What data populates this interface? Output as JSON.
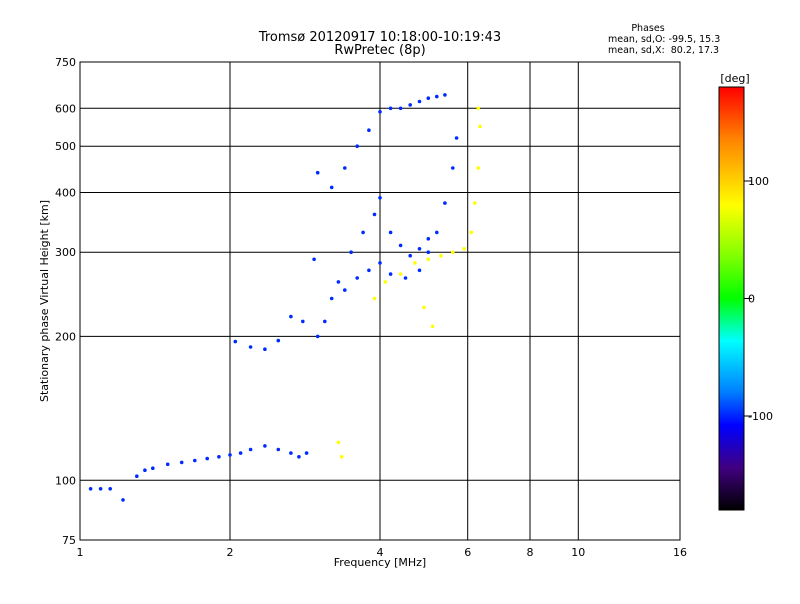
{
  "chart_data": {
    "type": "scatter",
    "title": "Tromsø 20120917 10:18:00-10:19:43",
    "subtitle": "RwPretec (8p)",
    "xlabel": "Frequency [MHz]",
    "ylabel": "Stationary phase Virtual Height [km]",
    "x_scale": "log",
    "y_scale": "log",
    "xlim": [
      1,
      16
    ],
    "ylim": [
      75,
      750
    ],
    "x_ticks": [
      1,
      2,
      4,
      6,
      8,
      10,
      16
    ],
    "y_ticks": [
      75,
      100,
      200,
      300,
      400,
      500,
      600,
      750
    ],
    "grid": true,
    "phase_box": {
      "title": "Phases",
      "line_o": "mean, sd,O: -99.5, 15.3",
      "line_x": "mean, sd,X:  80.2, 17.3"
    },
    "colorbar": {
      "label": "[deg]",
      "ticks": [
        100,
        0,
        -100
      ],
      "range": [
        -180,
        180
      ],
      "colors_top_to_bottom": [
        "#ff0000",
        "#ff8000",
        "#ffff00",
        "#80ff00",
        "#00ff00",
        "#00ffff",
        "#0080ff",
        "#0000ff",
        "#400080",
        "#000000"
      ]
    },
    "series": [
      {
        "group": "O-mode",
        "phase_deg": -100,
        "points": [
          [
            1.05,
            96
          ],
          [
            1.1,
            96
          ],
          [
            1.15,
            96
          ],
          [
            1.22,
            91
          ],
          [
            1.3,
            102
          ],
          [
            1.35,
            105
          ],
          [
            1.4,
            106
          ],
          [
            1.5,
            108
          ],
          [
            1.6,
            109
          ],
          [
            1.7,
            110
          ],
          [
            1.8,
            111
          ],
          [
            1.9,
            112
          ],
          [
            2.0,
            113
          ],
          [
            2.1,
            114
          ],
          [
            2.2,
            116
          ],
          [
            2.35,
            118
          ],
          [
            2.5,
            116
          ],
          [
            2.65,
            114
          ],
          [
            2.75,
            112
          ],
          [
            2.85,
            114
          ],
          [
            2.05,
            195
          ],
          [
            2.2,
            190
          ],
          [
            2.35,
            188
          ],
          [
            2.5,
            196
          ],
          [
            2.65,
            220
          ],
          [
            2.8,
            215
          ],
          [
            2.95,
            290
          ],
          [
            3.0,
            200
          ],
          [
            3.1,
            215
          ],
          [
            3.2,
            240
          ],
          [
            3.4,
            250
          ],
          [
            3.6,
            265
          ],
          [
            3.8,
            275
          ],
          [
            4.0,
            285
          ],
          [
            4.2,
            270
          ],
          [
            4.5,
            265
          ],
          [
            4.8,
            275
          ],
          [
            5.0,
            300
          ],
          [
            5.2,
            330
          ],
          [
            5.4,
            380
          ],
          [
            5.6,
            450
          ],
          [
            5.7,
            520
          ],
          [
            3.3,
            260
          ],
          [
            3.5,
            300
          ],
          [
            3.7,
            330
          ],
          [
            3.9,
            360
          ],
          [
            4.0,
            390
          ],
          [
            4.2,
            330
          ],
          [
            4.4,
            310
          ],
          [
            4.6,
            295
          ],
          [
            4.8,
            305
          ],
          [
            5.0,
            320
          ],
          [
            3.0,
            440
          ],
          [
            3.2,
            410
          ],
          [
            3.4,
            450
          ],
          [
            3.6,
            500
          ],
          [
            3.8,
            540
          ],
          [
            4.0,
            590
          ],
          [
            4.2,
            600
          ],
          [
            4.4,
            600
          ],
          [
            4.6,
            610
          ],
          [
            4.8,
            620
          ],
          [
            5.0,
            630
          ],
          [
            5.2,
            635
          ],
          [
            5.4,
            640
          ]
        ]
      },
      {
        "group": "X-mode",
        "phase_deg": 80,
        "points": [
          [
            3.9,
            240
          ],
          [
            4.1,
            260
          ],
          [
            4.4,
            270
          ],
          [
            4.7,
            285
          ],
          [
            5.0,
            290
          ],
          [
            5.3,
            295
          ],
          [
            5.6,
            300
          ],
          [
            5.9,
            305
          ],
          [
            6.1,
            330
          ],
          [
            6.2,
            380
          ],
          [
            6.3,
            450
          ],
          [
            6.35,
            550
          ],
          [
            6.3,
            600
          ],
          [
            4.9,
            230
          ],
          [
            5.1,
            210
          ],
          [
            3.3,
            120
          ],
          [
            3.35,
            112
          ]
        ]
      }
    ]
  }
}
